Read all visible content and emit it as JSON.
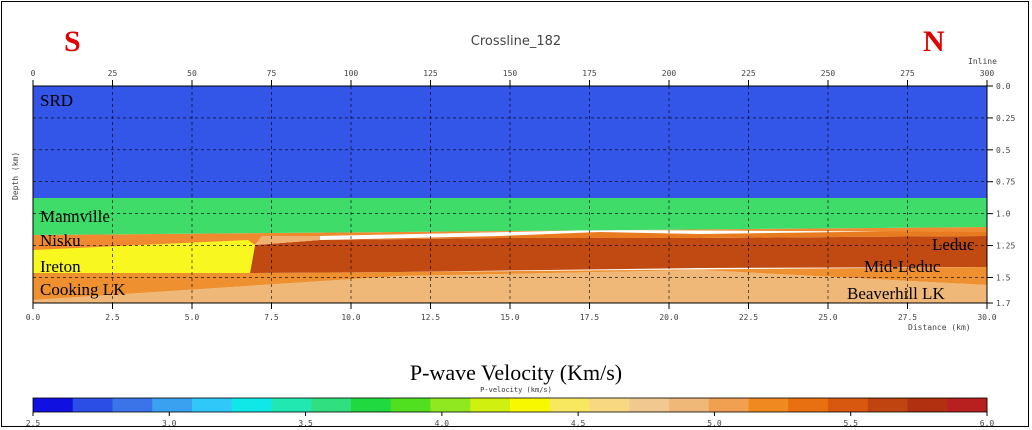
{
  "title": "Crossline_182",
  "compass": {
    "left": "S",
    "right": "N"
  },
  "top_axis": {
    "label": "Inline",
    "ticks": [
      "0",
      "25",
      "50",
      "75",
      "100",
      "125",
      "150",
      "175",
      "200",
      "225",
      "250",
      "275",
      "300"
    ]
  },
  "bottom_axis": {
    "label": "Distance (km)",
    "ticks": [
      "0.0",
      "2.5",
      "5.0",
      "7.5",
      "10.0",
      "12.5",
      "15.0",
      "17.5",
      "20.0",
      "22.5",
      "25.0",
      "27.5",
      "30.0"
    ]
  },
  "left_axis": {
    "label": "Depth (km)"
  },
  "right_axis": {
    "ticks": [
      "0.0",
      "0.25",
      "0.5",
      "0.75",
      "1.0",
      "1.25",
      "1.5",
      "1.7"
    ]
  },
  "layers": {
    "srd": "SRD",
    "mannville": "Mannville",
    "nisku": "Nisku",
    "ireton": "Ireton",
    "cooking": "Cooking LK",
    "leduc": "Leduc",
    "mid_leduc": "Mid-Leduc",
    "beaverhill": "Beaverhill LK"
  },
  "colorbar": {
    "title": "P-wave Velocity (Km/s)",
    "subtitle": "P-velocity (km/s)",
    "ticks": [
      "2.5",
      "3.0",
      "3.5",
      "4.0",
      "4.5",
      "5.0",
      "5.5",
      "6.0"
    ],
    "colors": [
      "#1010e0",
      "#2b4fe6",
      "#3a74e8",
      "#3aa0f0",
      "#30c8f8",
      "#10e8e8",
      "#20e8b0",
      "#30e080",
      "#20d840",
      "#50e020",
      "#90e820",
      "#d0f010",
      "#f8f800",
      "#f8e860",
      "#f8d880",
      "#f0c890",
      "#f0b878",
      "#f0a050",
      "#f08a20",
      "#e87010",
      "#d85810",
      "#c04410",
      "#b03010",
      "#b82020"
    ]
  },
  "colors": {
    "srd": "#3355e8",
    "mannville": "#3fdc6a",
    "nisku": "#f08a30",
    "ireton": "#f8f820",
    "cooking": "#ee9030",
    "leduc": "#c04a12",
    "leduc_cap": "#e87a20",
    "beaverhill": "#f0b878",
    "nisku_block": "#f0b070",
    "compass": "#e00000"
  }
}
